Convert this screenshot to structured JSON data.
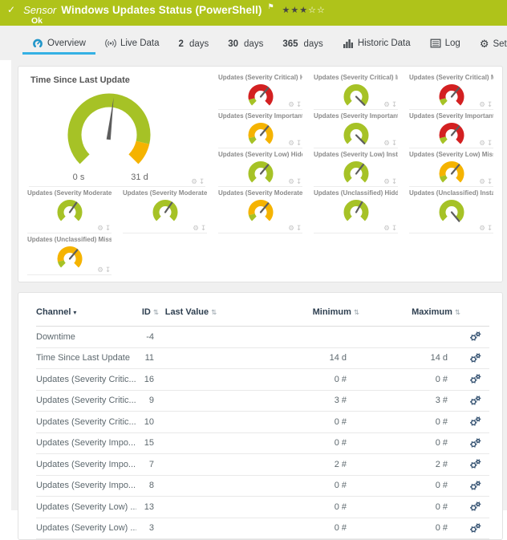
{
  "colors": {
    "header_green": "#afc31a",
    "gauge_green": "#a6c226",
    "gauge_yellow": "#f5b300",
    "gauge_red": "#d32021",
    "needle": "#5d5d5d",
    "active_tab_underline": "#35b1e4",
    "overview_icon_blue": "#2196c9"
  },
  "header": {
    "status_icon": "check-icon",
    "type_label": "Sensor",
    "title": "Windows Updates Status (PowerShell)",
    "flag_icon": "flag-icon",
    "priority": {
      "filled": 3,
      "total": 5
    },
    "status_text": "Ok"
  },
  "tabs": [
    {
      "id": "overview",
      "icon": "gauge-icon",
      "label": "Overview",
      "active": true
    },
    {
      "id": "live-data",
      "icon": "live-icon",
      "label": "Live Data",
      "active": false
    },
    {
      "id": "2-days",
      "prefix": "2",
      "label": "days",
      "active": false
    },
    {
      "id": "30-days",
      "prefix": "30",
      "label": "days",
      "active": false
    },
    {
      "id": "365-days",
      "prefix": "365",
      "label": "days",
      "active": false
    },
    {
      "id": "historic-data",
      "icon": "chart-icon",
      "label": "Historic Data",
      "active": false
    },
    {
      "id": "log",
      "icon": "log-icon",
      "label": "Log",
      "active": false
    },
    {
      "id": "settings",
      "icon": "gear-icon",
      "label": "Settings",
      "active": false
    }
  ],
  "gauges": {
    "main": {
      "title": "Time Since Last Update",
      "min_label": "0 s",
      "max_label": "31 d",
      "color": "green",
      "end_segment_color": "yellow",
      "end_segment_start_deg": 103,
      "needle_deg": 7,
      "icons": [
        "gear-icon",
        "pin-icon"
      ]
    },
    "tiles": [
      {
        "label": "Updates (Severity Critical) Hi...",
        "color": "red",
        "green_start": true,
        "needle_deg": 40
      },
      {
        "label": "Updates (Severity Critical) Ins...",
        "color": "green",
        "green_start": false,
        "needle_deg": 135
      },
      {
        "label": "Updates (Severity Critical) Mi...",
        "color": "red",
        "green_start": true,
        "needle_deg": 40
      },
      {
        "label": "Updates (Severity Important) ...",
        "color": "yellow",
        "green_start": true,
        "needle_deg": 40
      },
      {
        "label": "Updates (Severity Important) ...",
        "color": "green",
        "green_start": false,
        "needle_deg": 135
      },
      {
        "label": "Updates (Severity Important) ...",
        "color": "red",
        "green_start": true,
        "needle_deg": 40
      },
      {
        "label": "Updates (Severity Low) Hidden",
        "color": "green",
        "green_start": false,
        "needle_deg": 40
      },
      {
        "label": "Updates (Severity Low) Install...",
        "color": "green",
        "green_start": false,
        "needle_deg": 38
      },
      {
        "label": "Updates (Severity Low) Missi...",
        "color": "yellow",
        "green_start": true,
        "needle_deg": 40
      },
      {
        "label": "Updates (Severity Moderate) ...",
        "color": "green",
        "green_start": false,
        "needle_deg": 35
      },
      {
        "label": "Updates (Severity Moderate) I...",
        "color": "green",
        "green_start": false,
        "needle_deg": 35
      },
      {
        "label": "Updates (Severity Moderate) ...",
        "color": "yellow",
        "green_start": true,
        "needle_deg": 40
      },
      {
        "label": "Updates (Unclassified) Hidden",
        "color": "green",
        "green_start": false,
        "needle_deg": 30
      },
      {
        "label": "Updates (Unclassified) Install...",
        "color": "green",
        "green_start": false,
        "needle_deg": 140
      },
      {
        "label": "Updates (Unclassified) Missing",
        "color": "yellow",
        "green_start": true,
        "needle_deg": 40
      }
    ],
    "tile_icons": [
      "gear-icon",
      "pin-icon"
    ]
  },
  "table": {
    "columns": [
      {
        "label": "Channel",
        "sort": "active-desc"
      },
      {
        "label": "ID",
        "sort": "both"
      },
      {
        "label": "Last Value",
        "sort": "both"
      },
      {
        "label": "Minimum",
        "sort": "both"
      },
      {
        "label": "Maximum",
        "sort": "both"
      },
      {
        "label": "",
        "sort": "none"
      }
    ],
    "rows": [
      {
        "channel": "Downtime",
        "id": "-4",
        "last_value": "",
        "min": "",
        "max": ""
      },
      {
        "channel": "Time Since Last Update",
        "id": "11",
        "last_value": "",
        "min": "14 d",
        "max": "14 d"
      },
      {
        "channel": "Updates (Severity Critic...",
        "id": "16",
        "last_value": "",
        "min": "0 #",
        "max": "0 #"
      },
      {
        "channel": "Updates (Severity Critic...",
        "id": "9",
        "last_value": "",
        "min": "3 #",
        "max": "3 #"
      },
      {
        "channel": "Updates (Severity Critic...",
        "id": "10",
        "last_value": "",
        "min": "0 #",
        "max": "0 #"
      },
      {
        "channel": "Updates (Severity Impo...",
        "id": "15",
        "last_value": "",
        "min": "0 #",
        "max": "0 #"
      },
      {
        "channel": "Updates (Severity Impo...",
        "id": "7",
        "last_value": "",
        "min": "2 #",
        "max": "2 #"
      },
      {
        "channel": "Updates (Severity Impo...",
        "id": "8",
        "last_value": "",
        "min": "0 #",
        "max": "0 #"
      },
      {
        "channel": "Updates (Severity Low) ...",
        "id": "13",
        "last_value": "",
        "min": "0 #",
        "max": "0 #"
      },
      {
        "channel": "Updates (Severity Low) ...",
        "id": "3",
        "last_value": "",
        "min": "0 #",
        "max": "0 #"
      }
    ],
    "row_action_icon": "channel-settings-icon"
  }
}
